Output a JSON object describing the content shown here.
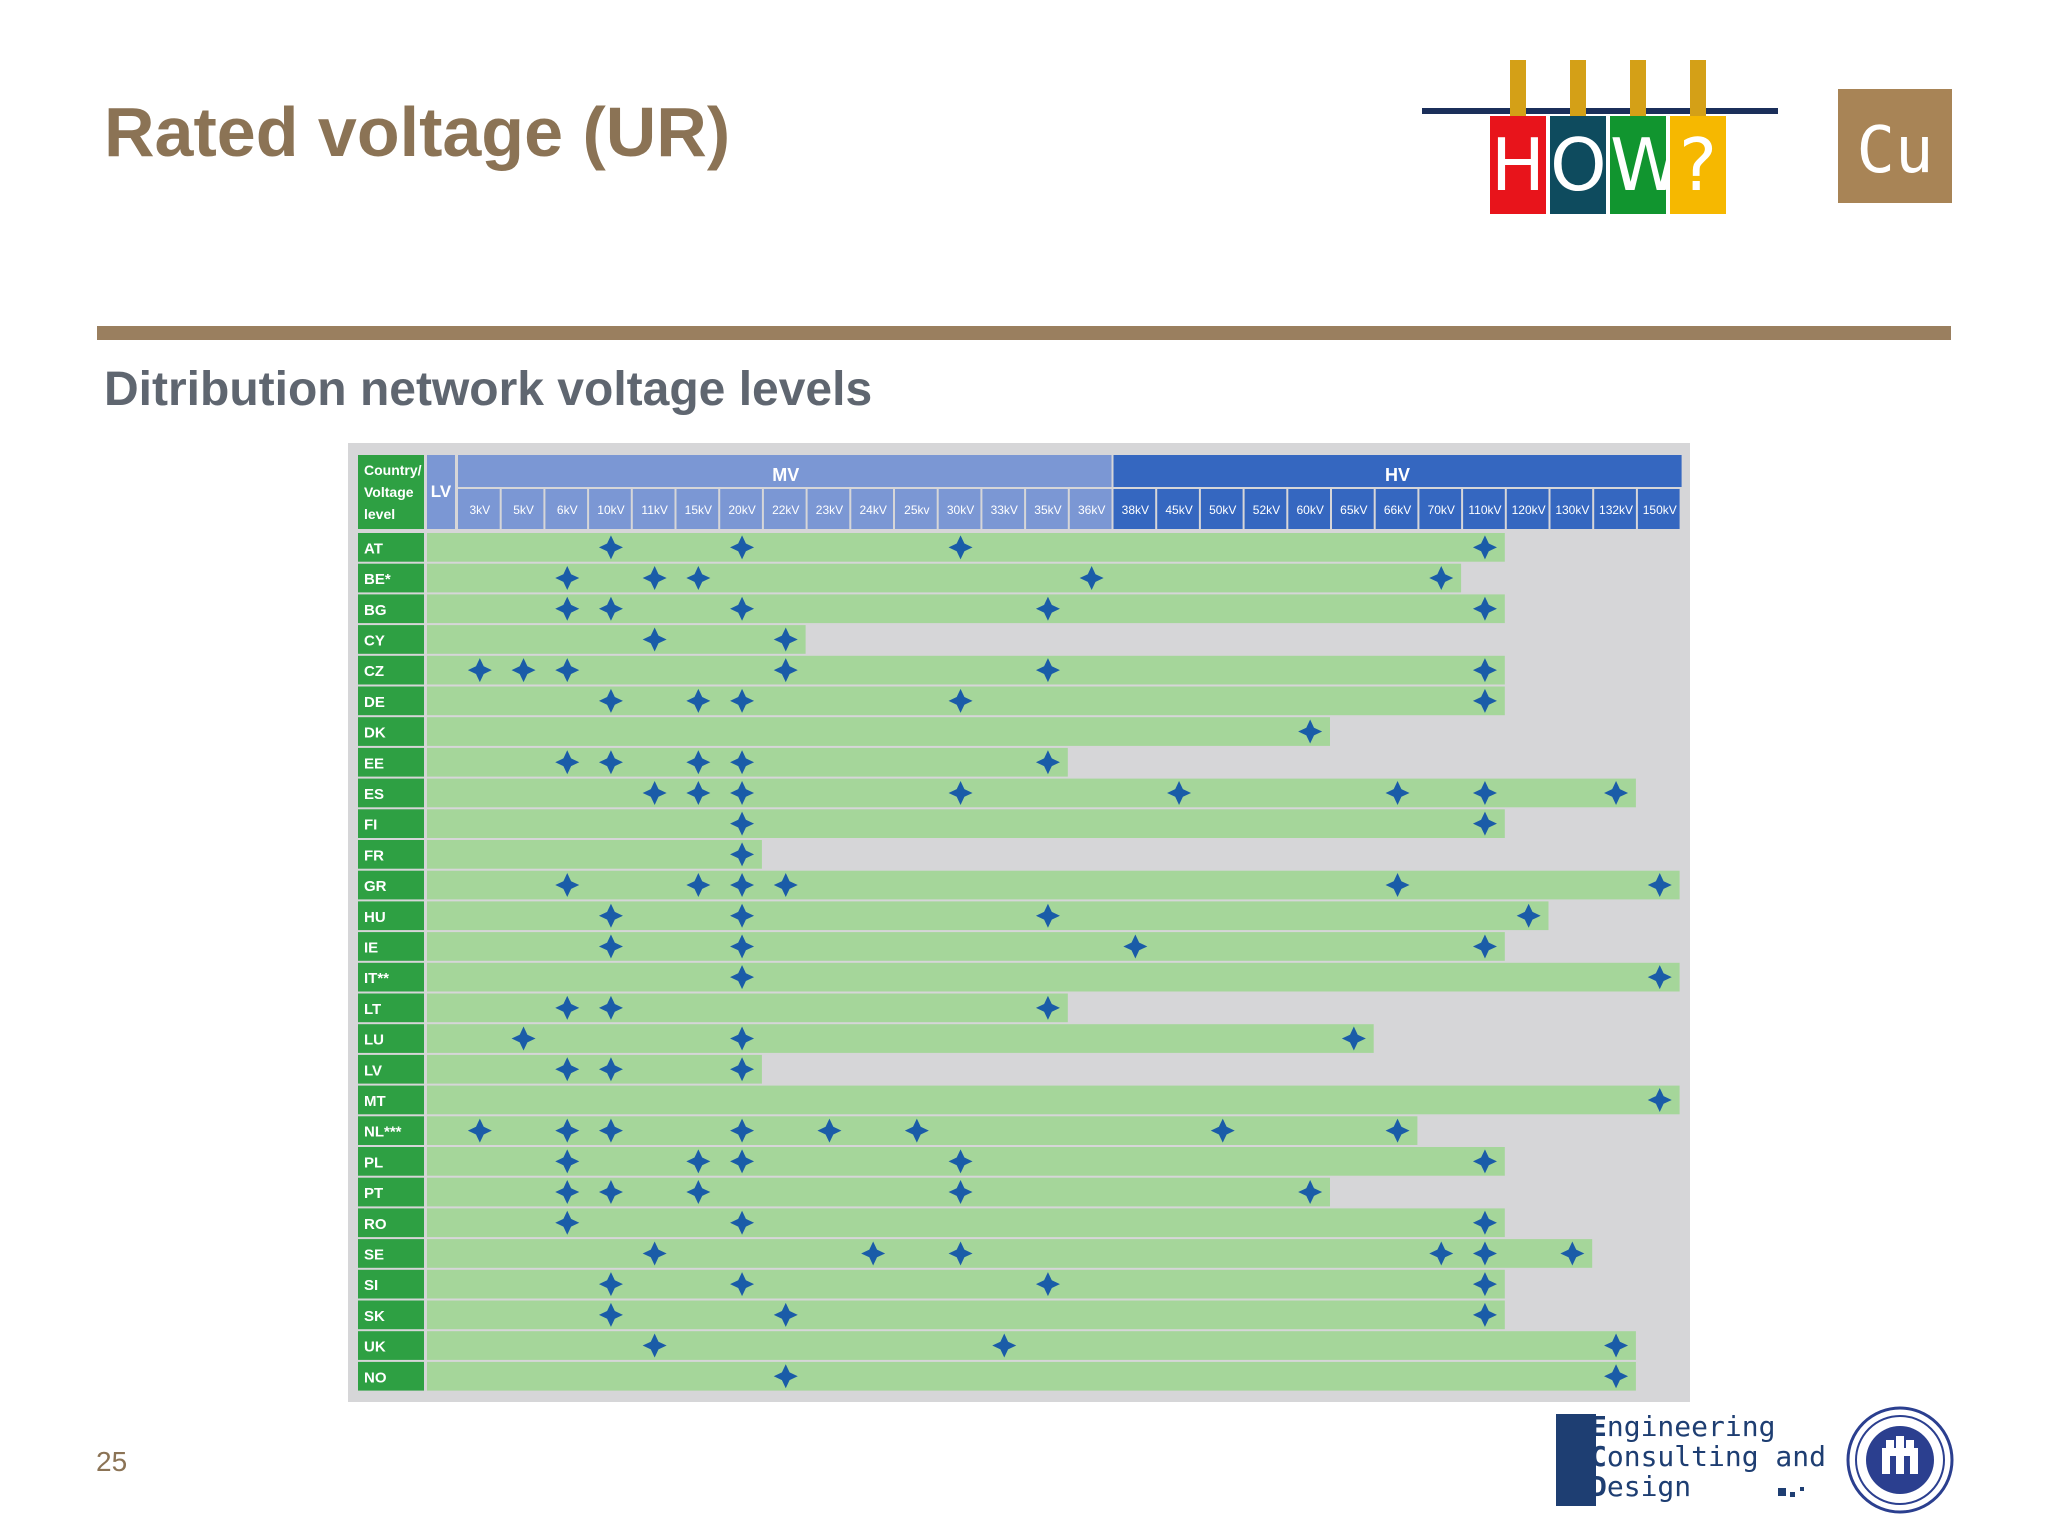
{
  "slide": {
    "title": "Rated voltage (UR)",
    "subtitle": "Ditribution network voltage levels",
    "page_number": "25"
  },
  "logos": {
    "how_letters": [
      "H",
      "O",
      "W",
      "?"
    ],
    "how_colors": [
      "#e8141b",
      "#0e4b5e",
      "#11952f",
      "#f6b800"
    ],
    "cu_text": "Cu",
    "ecd_lines": [
      {
        "cap": "E",
        "rest": "ngineering"
      },
      {
        "cap": "C",
        "rest": "onsulting and"
      },
      {
        "cap": "D",
        "rest": "esign"
      }
    ]
  },
  "colors": {
    "brand_brown": "#8b7355",
    "header_mv": "#7b97d4",
    "header_hv": "#3567c0",
    "country_green": "#2ea043",
    "bar_green": "#a5d69a",
    "marker_blue": "#1a5ca8"
  },
  "table": {
    "corner_label": [
      "Country/",
      "Voltage",
      "level"
    ],
    "lv_label": "LV",
    "mv_label": "MV",
    "hv_label": "HV",
    "columns": [
      "3kV",
      "5kV",
      "6kV",
      "10kV",
      "11kV",
      "15kV",
      "20kV",
      "22kV",
      "23kV",
      "24kV",
      "25kv",
      "30kV",
      "33kV",
      "35kV",
      "36kV",
      "38kV",
      "45kV",
      "50kV",
      "52kV",
      "60kV",
      "65kV",
      "66kV",
      "70kV",
      "110kV",
      "120kV",
      "130kV",
      "132kV",
      "150kV"
    ],
    "mv_column_count": 15,
    "rows": [
      {
        "country": "AT",
        "bar_end": "110kV",
        "voltages": [
          "10kV",
          "20kV",
          "30kV",
          "110kV"
        ]
      },
      {
        "country": "BE*",
        "bar_end": "70kV",
        "voltages": [
          "6kV",
          "11kV",
          "15kV",
          "36kV",
          "70kV"
        ]
      },
      {
        "country": "BG",
        "bar_end": "110kV",
        "voltages": [
          "6kV",
          "10kV",
          "20kV",
          "35kV",
          "110kV"
        ]
      },
      {
        "country": "CY",
        "bar_end": "22kV",
        "voltages": [
          "11kV",
          "22kV"
        ]
      },
      {
        "country": "CZ",
        "bar_end": "110kV",
        "voltages": [
          "3kV",
          "5kV",
          "6kV",
          "22kV",
          "35kV",
          "110kV"
        ]
      },
      {
        "country": "DE",
        "bar_end": "110kV",
        "voltages": [
          "10kV",
          "15kV",
          "20kV",
          "30kV",
          "110kV"
        ]
      },
      {
        "country": "DK",
        "bar_end": "60kV",
        "voltages": [
          "60kV"
        ]
      },
      {
        "country": "EE",
        "bar_end": "35kV",
        "voltages": [
          "6kV",
          "10kV",
          "15kV",
          "20kV",
          "35kV"
        ]
      },
      {
        "country": "ES",
        "bar_end": "132kV",
        "voltages": [
          "11kV",
          "15kV",
          "20kV",
          "30kV",
          "45kV",
          "66kV",
          "110kV",
          "132kV"
        ]
      },
      {
        "country": "FI",
        "bar_end": "110kV",
        "voltages": [
          "20kV",
          "110kV"
        ]
      },
      {
        "country": "FR",
        "bar_end": "20kV",
        "voltages": [
          "20kV"
        ]
      },
      {
        "country": "GR",
        "bar_end": "150kV",
        "voltages": [
          "6kV",
          "15kV",
          "20kV",
          "22kV",
          "66kV",
          "150kV"
        ]
      },
      {
        "country": "HU",
        "bar_end": "120kV",
        "voltages": [
          "10kV",
          "20kV",
          "35kV",
          "120kV"
        ]
      },
      {
        "country": "IE",
        "bar_end": "110kV",
        "voltages": [
          "10kV",
          "20kV",
          "38kV",
          "110kV"
        ]
      },
      {
        "country": "IT**",
        "bar_end": "150kV",
        "voltages": [
          "20kV",
          "150kV"
        ]
      },
      {
        "country": "LT",
        "bar_end": "35kV",
        "voltages": [
          "6kV",
          "10kV",
          "35kV"
        ]
      },
      {
        "country": "LU",
        "bar_end": "65kV",
        "voltages": [
          "5kV",
          "20kV",
          "65kV"
        ]
      },
      {
        "country": "LV",
        "bar_end": "20kV",
        "voltages": [
          "6kV",
          "10kV",
          "20kV"
        ]
      },
      {
        "country": "MT",
        "bar_end": "150kV",
        "voltages": [
          "150kV"
        ]
      },
      {
        "country": "NL***",
        "bar_end": "66kV",
        "voltages": [
          "3kV",
          "6kV",
          "10kV",
          "20kV",
          "23kV",
          "25kv",
          "50kV",
          "66kV"
        ]
      },
      {
        "country": "PL",
        "bar_end": "110kV",
        "voltages": [
          "6kV",
          "15kV",
          "20kV",
          "30kV",
          "110kV"
        ]
      },
      {
        "country": "PT",
        "bar_end": "60kV",
        "voltages": [
          "6kV",
          "10kV",
          "15kV",
          "30kV",
          "60kV"
        ]
      },
      {
        "country": "RO",
        "bar_end": "110kV",
        "voltages": [
          "6kV",
          "20kV",
          "110kV"
        ]
      },
      {
        "country": "SE",
        "bar_end": "130kV",
        "voltages": [
          "11kV",
          "24kV",
          "30kV",
          "70kV",
          "110kV",
          "130kV"
        ]
      },
      {
        "country": "SI",
        "bar_end": "110kV",
        "voltages": [
          "10kV",
          "20kV",
          "35kV",
          "110kV"
        ]
      },
      {
        "country": "SK",
        "bar_end": "110kV",
        "voltages": [
          "10kV",
          "22kV",
          "110kV"
        ]
      },
      {
        "country": "UK",
        "bar_end": "132kV",
        "voltages": [
          "11kV",
          "33kV",
          "132kV"
        ]
      },
      {
        "country": "NO",
        "bar_end": "132kV",
        "voltages": [
          "22kV",
          "132kV"
        ]
      }
    ]
  }
}
